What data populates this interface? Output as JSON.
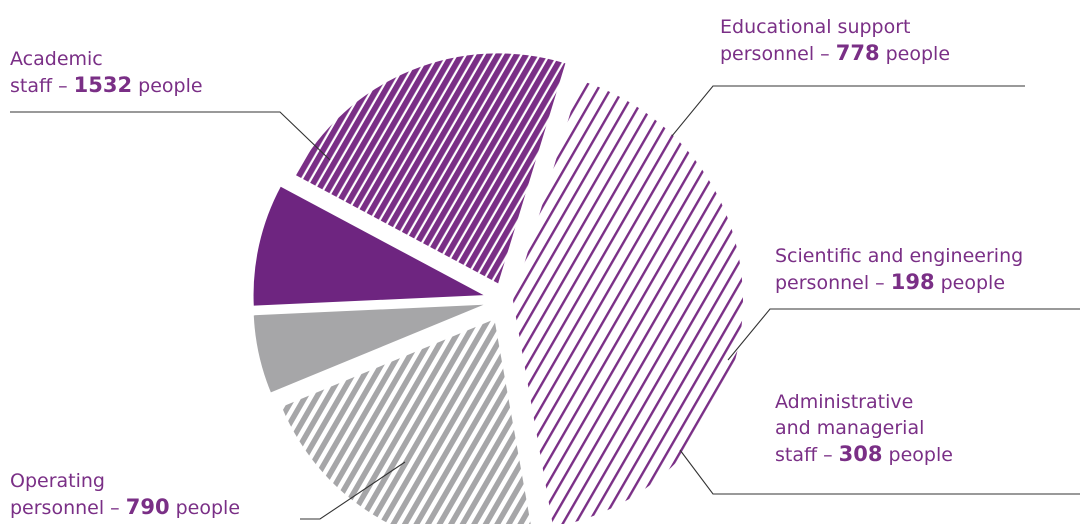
{
  "chart_data": {
    "type": "pie",
    "slices": [
      {
        "key": "academic",
        "lines": [
          "Academic",
          "staff – "
        ],
        "value": 1532,
        "unit": " people",
        "color": "#7a2f86",
        "pattern": "hatch-light"
      },
      {
        "key": "educational",
        "lines": [
          "Educational support",
          "personnel – "
        ],
        "value": 778,
        "unit": " people",
        "color": "#a6a6a8",
        "pattern": "hatch-light"
      },
      {
        "key": "scientific",
        "lines": [
          "Scientific and engineering",
          "personnel – "
        ],
        "value": 198,
        "unit": " people",
        "color": "#a6a6a8",
        "pattern": "solid"
      },
      {
        "key": "administrative",
        "lines": [
          "Administrative",
          "and managerial",
          "staff  – "
        ],
        "value": 308,
        "unit": " people",
        "color": "#6e2580",
        "pattern": "solid"
      },
      {
        "key": "operating",
        "lines": [
          "Operating",
          "personnel – "
        ],
        "value": 790,
        "unit": " people",
        "color": "#7a2f86",
        "pattern": "hatch-dense"
      }
    ],
    "text_color": "#7a2f86",
    "line_color": "#333333",
    "legend": "none"
  }
}
